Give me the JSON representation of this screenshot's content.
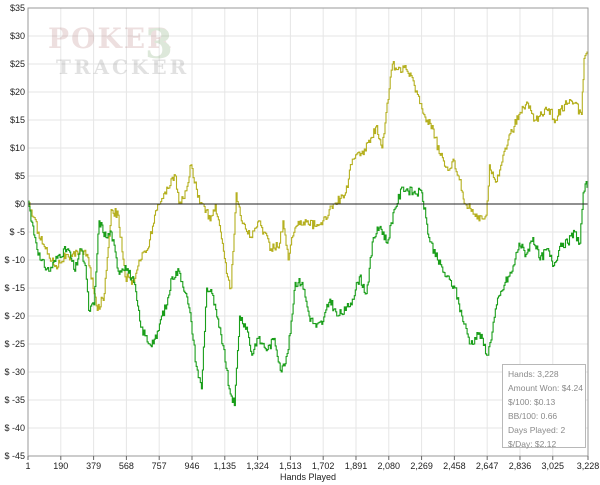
{
  "watermark": "POKER TRACKER 3",
  "chart_data": {
    "type": "line",
    "title": "",
    "xlabel": "Hands Played",
    "ylabel": "",
    "xlim": [
      1,
      3228
    ],
    "ylim": [
      -45,
      35
    ],
    "x_ticks": [
      1,
      190,
      379,
      568,
      757,
      946,
      1135,
      1324,
      1513,
      1702,
      1891,
      2080,
      2269,
      2458,
      2647,
      2836,
      3025,
      3228
    ],
    "x_tick_labels": [
      "1",
      "190",
      "379",
      "568",
      "757",
      "946",
      "1,135",
      "1,324",
      "1,513",
      "1,702",
      "1,891",
      "2,080",
      "2,269",
      "2,458",
      "2,647",
      "2,836",
      "3,025",
      "3,228"
    ],
    "y_ticks": [
      35,
      30,
      25,
      20,
      15,
      10,
      5,
      0,
      -5,
      -10,
      -15,
      -20,
      -25,
      -30,
      -35,
      -40,
      -45
    ],
    "y_tick_labels": [
      "$35",
      "$30",
      "$25",
      "$20",
      "$15",
      "$10",
      "$5",
      "$0",
      "$ -5",
      "$ -10",
      "$ -15",
      "$ -20",
      "$ -25",
      "$ -30",
      "$ -35",
      "$ -40",
      "$ -45"
    ],
    "grid": true,
    "series": [
      {
        "color": "#b5b020",
        "x": [
          1,
          60,
          100,
          160,
          220,
          240,
          300,
          340,
          400,
          440,
          480,
          520,
          560,
          610,
          640,
          690,
          730,
          760,
          800,
          850,
          870,
          900,
          940,
          990,
          1010,
          1050,
          1080,
          1110,
          1150,
          1170,
          1200,
          1230,
          1290,
          1330,
          1400,
          1450,
          1470,
          1500,
          1520,
          1570,
          1610,
          1660,
          1700,
          1760,
          1800,
          1830,
          1870,
          1920,
          1970,
          2010,
          2040,
          2070,
          2100,
          2130,
          2180,
          2220,
          2270,
          2300,
          2330,
          2370,
          2420,
          2450,
          2480,
          2520,
          2560,
          2600,
          2640,
          2660,
          2700,
          2750,
          2790,
          2830,
          2880,
          2920,
          2960,
          3000,
          3040,
          3070,
          3110,
          3150,
          3190,
          3205,
          3228
        ],
        "values": [
          0.5,
          -5,
          -8,
          -11,
          -9,
          -10,
          -8,
          -9,
          -19,
          -16,
          -1,
          -2,
          -13,
          -14,
          -10,
          -8,
          -2,
          0,
          3,
          5,
          0,
          1,
          7,
          0,
          0,
          -3,
          0,
          -5,
          -13,
          -15,
          2,
          -3,
          -6,
          -3,
          -8,
          -7,
          -3,
          -10,
          -6,
          -3,
          -3,
          -4,
          -3,
          0,
          1,
          2,
          8,
          9,
          11,
          14,
          10,
          18,
          25,
          24,
          24,
          22,
          17,
          15,
          14,
          9,
          6,
          8,
          5,
          0,
          -1,
          -3,
          -2,
          7,
          4,
          10,
          13,
          16,
          18,
          15,
          16,
          17,
          15,
          17,
          18,
          18,
          16,
          26,
          26.5
        ]
      },
      {
        "color": "#1a9e1a",
        "x": [
          1,
          40,
          70,
          120,
          180,
          230,
          270,
          300,
          330,
          350,
          380,
          410,
          450,
          480,
          520,
          560,
          610,
          650,
          700,
          740,
          770,
          800,
          830,
          870,
          910,
          940,
          970,
          1000,
          1030,
          1060,
          1100,
          1130,
          1160,
          1190,
          1220,
          1260,
          1290,
          1320,
          1350,
          1380,
          1420,
          1460,
          1500,
          1540,
          1580,
          1620,
          1660,
          1700,
          1740,
          1780,
          1830,
          1870,
          1910,
          1950,
          1990,
          2030,
          2070,
          2110,
          2160,
          2220,
          2270,
          2310,
          2360,
          2410,
          2460,
          2500,
          2550,
          2600,
          2650,
          2700,
          2750,
          2790,
          2830,
          2870,
          2910,
          2950,
          2990,
          3030,
          3070,
          3110,
          3150,
          3180,
          3200,
          3228
        ],
        "values": [
          0.5,
          -6,
          -10,
          -12,
          -9,
          -8,
          -12,
          -8,
          -11,
          -19,
          -18,
          -3,
          -6,
          -5,
          -12,
          -11,
          -14,
          -22,
          -25,
          -24,
          -20,
          -18,
          -13,
          -12,
          -16,
          -21,
          -29,
          -33,
          -15,
          -16,
          -22,
          -26,
          -33,
          -36,
          -20,
          -22,
          -27,
          -24,
          -25,
          -26,
          -24,
          -30,
          -26,
          -14,
          -14,
          -20,
          -22,
          -21,
          -17,
          -20,
          -19,
          -17,
          -13,
          -16,
          -6,
          -4,
          -7,
          -1,
          3,
          2,
          2,
          -6,
          -10,
          -13,
          -15,
          -20,
          -25,
          -23,
          -27,
          -18,
          -14,
          -12,
          -7,
          -9,
          -6,
          -10,
          -8,
          -11,
          -7,
          -7,
          -5,
          -7,
          2,
          4.2
        ]
      }
    ]
  },
  "stats": {
    "hands": "Hands: 3,228",
    "amount_won": "Amount Won: $4.24",
    "per100": "$/100: $0.13",
    "bb100": "BB/100: 0.66",
    "days_played": "Days Played: 2",
    "per_day": "$/Day: $2.12"
  }
}
